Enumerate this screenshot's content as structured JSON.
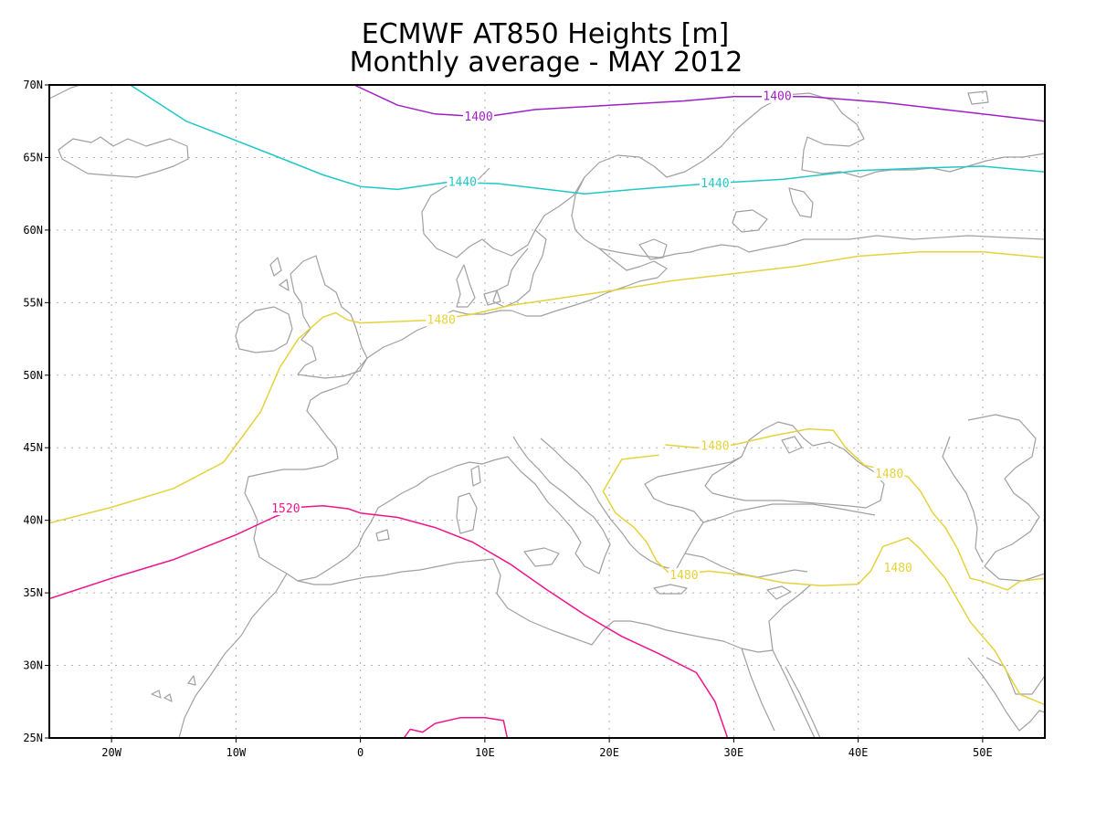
{
  "title": {
    "line1": "ECMWF AT850 Heights [m]",
    "line2": "Monthly average - MAY 2012"
  },
  "map": {
    "lon_range": [
      -25,
      55
    ],
    "lat_range": [
      25,
      70
    ],
    "lon_ticks": [
      {
        "value": -20,
        "label": "20W"
      },
      {
        "value": -10,
        "label": "10W"
      },
      {
        "value": 0,
        "label": "0"
      },
      {
        "value": 10,
        "label": "10E"
      },
      {
        "value": 20,
        "label": "20E"
      },
      {
        "value": 30,
        "label": "30E"
      },
      {
        "value": 40,
        "label": "40E"
      },
      {
        "value": 50,
        "label": "50E"
      }
    ],
    "lat_ticks": [
      {
        "value": 25,
        "label": "25N"
      },
      {
        "value": 30,
        "label": "30N"
      },
      {
        "value": 35,
        "label": "35N"
      },
      {
        "value": 40,
        "label": "40N"
      },
      {
        "value": 45,
        "label": "45N"
      },
      {
        "value": 50,
        "label": "50N"
      },
      {
        "value": 55,
        "label": "55N"
      },
      {
        "value": 60,
        "label": "60N"
      },
      {
        "value": 65,
        "label": "65N"
      },
      {
        "value": 70,
        "label": "70N"
      }
    ],
    "grid": true,
    "colors": {
      "coastline": "#a0a0a0",
      "c1400": "#a020c8",
      "c1440": "#20c8c8",
      "c1480": "#e6d23c",
      "c1520": "#f0148c"
    }
  },
  "contours": [
    {
      "level": 1400,
      "color": "#a020c8",
      "lines": [
        [
          [
            -0.5,
            70
          ],
          [
            3,
            68.6
          ],
          [
            6,
            68
          ],
          [
            10,
            67.8
          ],
          [
            14,
            68.3
          ],
          [
            20,
            68.6
          ],
          [
            26,
            68.9
          ],
          [
            30,
            69.2
          ],
          [
            36,
            69.2
          ],
          [
            42,
            68.8
          ],
          [
            48,
            68.2
          ],
          [
            55,
            67.5
          ]
        ]
      ],
      "labels": [
        {
          "text": "1400",
          "lon": 9.5,
          "lat": 67.8
        },
        {
          "text": "1400",
          "lon": 33.5,
          "lat": 69.2
        }
      ]
    },
    {
      "level": 1440,
      "color": "#20c8c8",
      "lines": [
        [
          [
            -18.5,
            70
          ],
          [
            -14,
            67.5
          ],
          [
            -8,
            65.5
          ],
          [
            -3,
            63.8
          ],
          [
            0,
            63
          ],
          [
            3,
            62.8
          ],
          [
            7,
            63.3
          ],
          [
            11,
            63.2
          ],
          [
            15,
            62.8
          ],
          [
            18,
            62.5
          ],
          [
            22,
            62.8
          ],
          [
            28,
            63.2
          ],
          [
            34,
            63.5
          ],
          [
            40,
            64.1
          ],
          [
            46,
            64.3
          ],
          [
            50,
            64.4
          ],
          [
            55,
            64
          ]
        ]
      ],
      "labels": [
        {
          "text": "1440",
          "lon": 8.2,
          "lat": 63.3
        },
        {
          "text": "1440",
          "lon": 28.5,
          "lat": 63.2
        }
      ]
    },
    {
      "level": 1480,
      "color": "#e6d23c",
      "lines": [
        [
          [
            -25,
            39.8
          ],
          [
            -20,
            40.9
          ],
          [
            -15,
            42.2
          ],
          [
            -11,
            44
          ],
          [
            -8,
            47.5
          ],
          [
            -6.5,
            50.5
          ],
          [
            -5,
            52.5
          ],
          [
            -3,
            54
          ],
          [
            -2,
            54.3
          ],
          [
            -1,
            53.8
          ],
          [
            0,
            53.6
          ],
          [
            3,
            53.7
          ],
          [
            6,
            53.8
          ],
          [
            9,
            54.2
          ],
          [
            12,
            54.8
          ],
          [
            16,
            55.3
          ],
          [
            20,
            55.8
          ],
          [
            25,
            56.5
          ],
          [
            30,
            57
          ],
          [
            35,
            57.5
          ],
          [
            40,
            58.2
          ],
          [
            45,
            58.5
          ],
          [
            50,
            58.5
          ],
          [
            55,
            58.1
          ]
        ],
        [
          [
            24.5,
            45.2
          ],
          [
            27,
            45
          ],
          [
            30,
            45.2
          ],
          [
            33,
            45.8
          ],
          [
            36,
            46.3
          ],
          [
            38,
            46.2
          ],
          [
            39,
            45
          ],
          [
            40.5,
            43.8
          ],
          [
            42,
            43.5
          ],
          [
            44,
            43
          ],
          [
            45,
            42
          ],
          [
            46,
            40.5
          ],
          [
            47,
            39.5
          ],
          [
            48,
            38
          ],
          [
            49,
            36
          ],
          [
            50,
            35.8
          ],
          [
            52,
            35.2
          ],
          [
            53,
            35.8
          ],
          [
            55,
            36
          ]
        ],
        [
          [
            24,
            44.5
          ],
          [
            21,
            44.2
          ],
          [
            19.5,
            42
          ],
          [
            20.5,
            40.5
          ],
          [
            22,
            39.5
          ],
          [
            23,
            38.5
          ],
          [
            23.8,
            37.2
          ],
          [
            25,
            36.2
          ],
          [
            28,
            36.5
          ],
          [
            31,
            36.2
          ],
          [
            34,
            35.7
          ],
          [
            37,
            35.5
          ],
          [
            40,
            35.6
          ],
          [
            41,
            36.5
          ],
          [
            42,
            38.2
          ],
          [
            44,
            38.8
          ],
          [
            45,
            38
          ],
          [
            47,
            36
          ],
          [
            49,
            33
          ],
          [
            51,
            31
          ],
          [
            52,
            29.5
          ],
          [
            53,
            28
          ],
          [
            55,
            27.3
          ]
        ]
      ],
      "labels": [
        {
          "text": "1480",
          "lon": 6.5,
          "lat": 53.8
        },
        {
          "text": "1480",
          "lon": 28.5,
          "lat": 45.1
        },
        {
          "text": "1480",
          "lon": 42.5,
          "lat": 43.2
        },
        {
          "text": "1480",
          "lon": 43.2,
          "lat": 36.7
        },
        {
          "text": "1480",
          "lon": 26,
          "lat": 36.2
        }
      ]
    },
    {
      "level": 1520,
      "color": "#f0148c",
      "lines": [
        [
          [
            -25,
            34.6
          ],
          [
            -20,
            36
          ],
          [
            -15,
            37.3
          ],
          [
            -10,
            39
          ],
          [
            -7,
            40.2
          ],
          [
            -5,
            40.9
          ],
          [
            -3,
            41
          ],
          [
            -1,
            40.8
          ],
          [
            0,
            40.5
          ],
          [
            3,
            40.2
          ],
          [
            6,
            39.5
          ],
          [
            9,
            38.5
          ],
          [
            12,
            37
          ],
          [
            15,
            35.2
          ],
          [
            18,
            33.5
          ],
          [
            21,
            32
          ],
          [
            24,
            30.8
          ],
          [
            27,
            29.5
          ],
          [
            28.5,
            27.5
          ],
          [
            29.5,
            25
          ]
        ],
        [
          [
            3.5,
            25
          ],
          [
            4,
            25.6
          ],
          [
            5,
            25.4
          ],
          [
            6,
            26
          ],
          [
            8,
            26.4
          ],
          [
            10,
            26.4
          ],
          [
            11.5,
            26.2
          ],
          [
            11.8,
            25
          ]
        ]
      ],
      "labels": [
        {
          "text": "1520",
          "lon": -6,
          "lat": 40.8
        }
      ]
    }
  ]
}
